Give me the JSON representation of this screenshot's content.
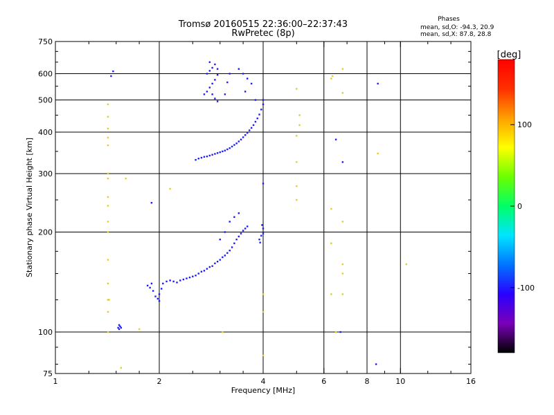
{
  "chart_data": {
    "type": "scatter",
    "title": "Tromsø 20160515 22:36:00–22:37:43",
    "subtitle": "RwPretec (8p)",
    "stats": {
      "heading": "Phases",
      "line1": "mean, sd,O: -94.3, 20.9",
      "line2": "mean, sd,X:  87.8, 28.8"
    },
    "xlabel": "Frequency [MHz]",
    "ylabel": "Stationary phase Virtual Height [km]",
    "x_scale": "log",
    "y_scale": "log",
    "xlim": [
      1,
      16
    ],
    "ylim": [
      75,
      750
    ],
    "x_ticks": [
      1,
      2,
      4,
      6,
      8,
      10,
      16
    ],
    "x_tick_labels": [
      "1",
      "2",
      "4",
      "6",
      "8",
      "10",
      "16"
    ],
    "y_ticks": [
      75,
      100,
      200,
      300,
      400,
      500,
      600,
      750
    ],
    "y_tick_labels": [
      "75",
      "100",
      "200",
      "300",
      "400",
      "500",
      "600",
      "750"
    ],
    "x_minor_ticks": [
      1.25,
      1.5,
      1.75,
      2.5,
      3,
      3.5,
      5,
      7,
      9,
      12,
      14
    ],
    "y_minor_ticks": [
      80,
      90,
      125,
      150,
      175,
      250,
      350,
      450,
      550,
      650,
      700
    ],
    "gridlines_x": [
      2,
      4,
      6,
      8,
      10
    ],
    "gridlines_y": [
      100,
      200,
      300,
      400,
      500,
      600
    ],
    "colorbar": {
      "label": "[deg]",
      "range": [
        -180,
        180
      ],
      "ticks": [
        100,
        0,
        -100
      ],
      "tick_labels": [
        "100",
        "0",
        "-100"
      ],
      "colormap": [
        "#000000",
        "#7a00b8",
        "#2a00ff",
        "#0074ff",
        "#00e5ff",
        "#00ff66",
        "#6cff00",
        "#ffff00",
        "#ffa000",
        "#ff3000",
        "#ff0000"
      ]
    },
    "series": [
      {
        "points": [
          [
            1.52,
            103
          ],
          [
            1.53,
            105
          ],
          [
            1.54,
            104
          ],
          [
            1.55,
            103
          ],
          [
            1.53,
            102
          ],
          [
            1.85,
            138
          ],
          [
            1.88,
            136
          ],
          [
            1.9,
            140
          ],
          [
            1.92,
            133
          ],
          [
            1.95,
            128
          ],
          [
            1.98,
            126
          ],
          [
            2.0,
            124
          ],
          [
            2.0,
            130
          ],
          [
            2.03,
            135
          ],
          [
            2.05,
            140
          ],
          [
            2.1,
            142
          ],
          [
            2.15,
            143
          ],
          [
            2.2,
            142
          ],
          [
            2.25,
            141
          ],
          [
            2.3,
            143
          ],
          [
            2.35,
            144
          ],
          [
            2.4,
            145
          ],
          [
            2.45,
            146
          ],
          [
            2.5,
            147
          ],
          [
            2.55,
            148
          ],
          [
            2.6,
            150
          ],
          [
            2.65,
            152
          ],
          [
            2.7,
            153
          ],
          [
            2.75,
            155
          ],
          [
            2.8,
            157
          ],
          [
            2.85,
            158
          ],
          [
            2.9,
            161
          ],
          [
            2.95,
            163
          ],
          [
            3.0,
            165
          ],
          [
            3.05,
            168
          ],
          [
            3.1,
            170
          ],
          [
            3.15,
            173
          ],
          [
            3.2,
            176
          ],
          [
            3.25,
            180
          ],
          [
            3.3,
            185
          ],
          [
            3.35,
            190
          ],
          [
            3.4,
            194
          ],
          [
            3.45,
            198
          ],
          [
            3.5,
            202
          ],
          [
            3.55,
            205
          ],
          [
            3.6,
            208
          ],
          [
            3.0,
            190
          ],
          [
            3.1,
            200
          ],
          [
            3.2,
            215
          ],
          [
            3.3,
            222
          ],
          [
            3.4,
            228
          ],
          [
            3.9,
            190
          ],
          [
            3.95,
            195
          ],
          [
            4.0,
            198
          ],
          [
            4.0,
            205
          ],
          [
            3.97,
            210
          ],
          [
            3.92,
            186
          ],
          [
            2.55,
            330
          ],
          [
            2.6,
            333
          ],
          [
            2.65,
            335
          ],
          [
            2.7,
            337
          ],
          [
            2.75,
            338
          ],
          [
            2.8,
            340
          ],
          [
            2.85,
            342
          ],
          [
            2.9,
            344
          ],
          [
            2.95,
            346
          ],
          [
            3.0,
            348
          ],
          [
            3.05,
            350
          ],
          [
            3.1,
            352
          ],
          [
            3.15,
            355
          ],
          [
            3.2,
            358
          ],
          [
            3.25,
            362
          ],
          [
            3.3,
            366
          ],
          [
            3.35,
            370
          ],
          [
            3.4,
            375
          ],
          [
            3.45,
            380
          ],
          [
            3.5,
            386
          ],
          [
            3.55,
            392
          ],
          [
            3.6,
            398
          ],
          [
            3.65,
            405
          ],
          [
            3.7,
            412
          ],
          [
            3.75,
            420
          ],
          [
            3.8,
            430
          ],
          [
            3.85,
            440
          ],
          [
            3.9,
            452
          ],
          [
            3.95,
            468
          ],
          [
            4.0,
            485
          ],
          [
            2.7,
            520
          ],
          [
            2.75,
            530
          ],
          [
            2.8,
            545
          ],
          [
            2.85,
            560
          ],
          [
            2.9,
            575
          ],
          [
            2.95,
            595
          ],
          [
            2.75,
            600
          ],
          [
            2.8,
            612
          ],
          [
            2.85,
            625
          ],
          [
            2.9,
            640
          ],
          [
            2.8,
            650
          ],
          [
            2.95,
            620
          ],
          [
            2.85,
            520
          ],
          [
            2.9,
            505
          ],
          [
            2.95,
            495
          ],
          [
            3.1,
            520
          ],
          [
            3.15,
            565
          ],
          [
            3.2,
            600
          ],
          [
            3.4,
            620
          ],
          [
            3.5,
            600
          ],
          [
            3.6,
            580
          ],
          [
            3.55,
            530
          ],
          [
            3.7,
            560
          ],
          [
            3.8,
            500
          ],
          [
            4.0,
            500
          ],
          [
            1.45,
            590
          ],
          [
            1.47,
            610
          ],
          [
            1.9,
            245
          ],
          [
            4.0,
            280
          ],
          [
            6.5,
            380
          ],
          [
            6.7,
            100
          ],
          [
            6.8,
            325
          ],
          [
            8.5,
            80
          ],
          [
            8.6,
            560
          ]
        ]
      },
      {
        "points": [
          [
            1.42,
            100
          ],
          [
            1.42,
            115
          ],
          [
            1.42,
            125
          ],
          [
            1.42,
            140
          ],
          [
            1.42,
            165
          ],
          [
            1.42,
            200
          ],
          [
            1.42,
            215
          ],
          [
            1.42,
            240
          ],
          [
            1.42,
            255
          ],
          [
            1.42,
            290
          ],
          [
            1.42,
            300
          ],
          [
            1.42,
            365
          ],
          [
            1.42,
            385
          ],
          [
            1.42,
            410
          ],
          [
            1.42,
            445
          ],
          [
            1.42,
            485
          ],
          [
            1.43,
            125
          ],
          [
            1.55,
            78
          ],
          [
            1.6,
            290
          ],
          [
            1.75,
            102
          ],
          [
            2.15,
            270
          ],
          [
            3.05,
            100
          ],
          [
            4.0,
            85
          ],
          [
            4.0,
            115
          ],
          [
            4.0,
            130
          ],
          [
            5.0,
            250
          ],
          [
            5.0,
            275
          ],
          [
            5.0,
            325
          ],
          [
            5.0,
            390
          ],
          [
            5.1,
            420
          ],
          [
            5.1,
            450
          ],
          [
            5.0,
            540
          ],
          [
            6.3,
            580
          ],
          [
            6.3,
            130
          ],
          [
            6.3,
            235
          ],
          [
            6.5,
            100
          ],
          [
            6.8,
            130
          ],
          [
            6.8,
            150
          ],
          [
            6.8,
            160
          ],
          [
            6.8,
            215
          ],
          [
            6.8,
            525
          ],
          [
            6.8,
            620
          ],
          [
            8.6,
            345
          ],
          [
            10.4,
            160
          ],
          [
            6.35,
            590
          ],
          [
            6.3,
            185
          ]
        ]
      }
    ]
  }
}
